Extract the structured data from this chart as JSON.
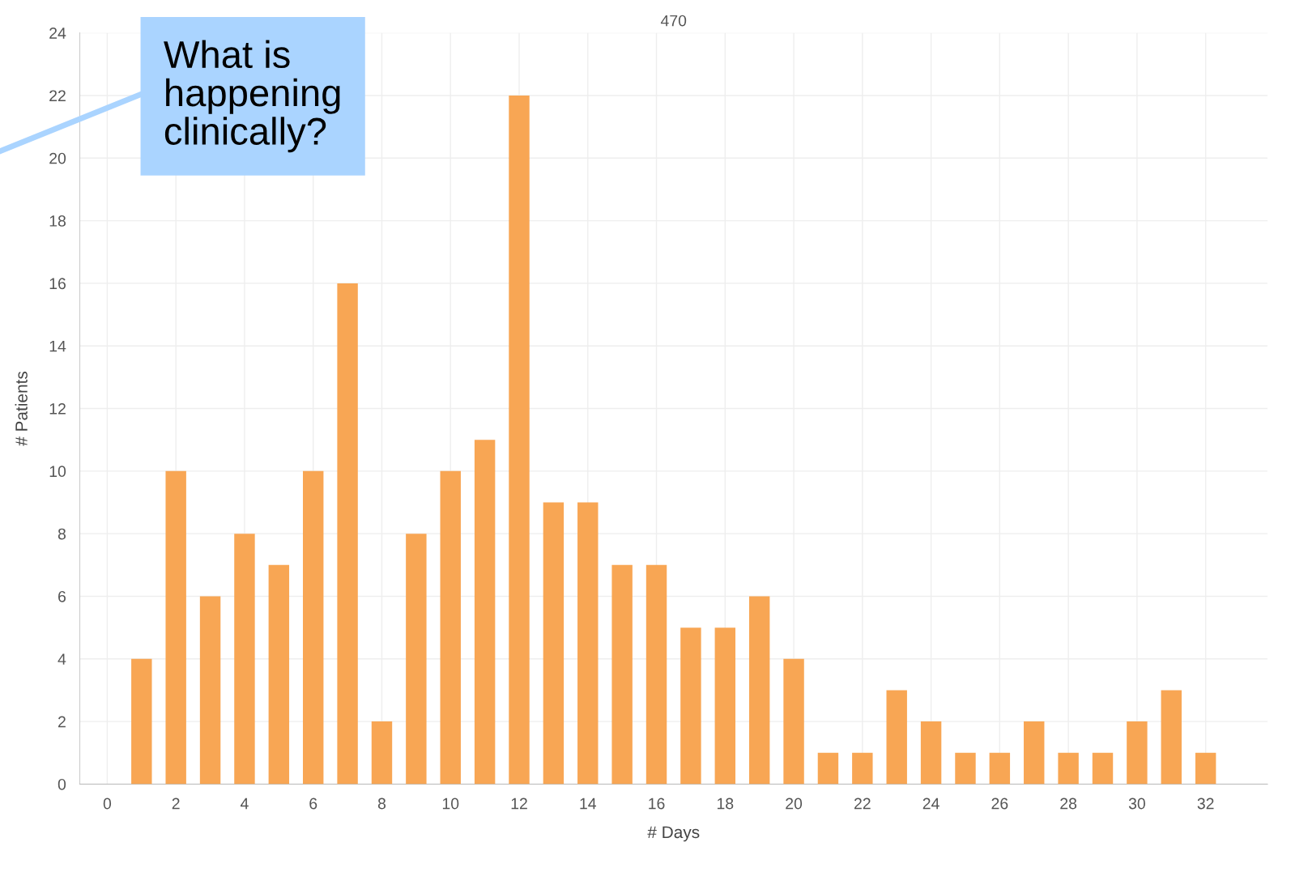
{
  "chart_data": {
    "type": "bar",
    "title": "470",
    "xlabel": "# Days",
    "ylabel": "# Patients",
    "x": [
      1,
      2,
      3,
      4,
      5,
      6,
      7,
      8,
      9,
      10,
      11,
      12,
      13,
      14,
      15,
      16,
      17,
      18,
      19,
      20,
      21,
      22,
      23,
      24,
      25,
      26,
      27,
      28,
      29,
      30,
      31,
      32
    ],
    "values": [
      4,
      10,
      6,
      8,
      7,
      10,
      16,
      2,
      8,
      10,
      11,
      22,
      9,
      9,
      7,
      7,
      5,
      5,
      6,
      4,
      1,
      1,
      3,
      2,
      1,
      1,
      2,
      1,
      1,
      2,
      3,
      1
    ],
    "color": "#f8a654",
    "xlim": [
      -0.8,
      33.8
    ],
    "xticks": [
      0,
      2,
      4,
      6,
      8,
      10,
      12,
      14,
      16,
      18,
      20,
      22,
      24,
      26,
      28,
      30,
      32
    ],
    "ylim": [
      0,
      24
    ],
    "yticks": [
      0,
      2,
      4,
      6,
      8,
      10,
      12,
      14,
      16,
      18,
      20,
      22,
      24
    ],
    "grid": true,
    "annotations": [
      "What is\nhappening\nclinically?"
    ]
  }
}
